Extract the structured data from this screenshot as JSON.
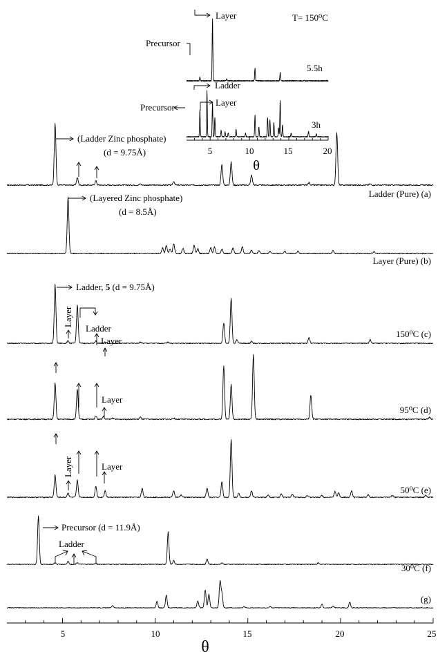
{
  "chart_data": {
    "type": "line",
    "xlabel": "θ",
    "xlim": [
      2,
      25
    ],
    "xticks": [
      5,
      10,
      15,
      20,
      25
    ],
    "yticks": false,
    "series": [
      {
        "name": "Ladder (Pure) (a)",
        "peaks": [
          [
            4.6,
            1.0
          ],
          [
            5.8,
            0.12
          ],
          [
            6.8,
            0.07
          ],
          [
            9.2,
            0.02
          ],
          [
            11.0,
            0.06
          ],
          [
            13.6,
            0.33
          ],
          [
            14.1,
            0.37
          ],
          [
            15.2,
            0.16
          ],
          [
            18.3,
            0.04
          ],
          [
            19.8,
            0.85
          ],
          [
            21.6,
            0.02
          ]
        ]
      },
      {
        "name": "Layer (Pure) (b)",
        "peaks": [
          [
            5.3,
            1.0
          ],
          [
            10.4,
            0.1
          ],
          [
            10.6,
            0.14
          ],
          [
            10.8,
            0.08
          ],
          [
            11.0,
            0.17
          ],
          [
            11.5,
            0.09
          ],
          [
            12.1,
            0.14
          ],
          [
            12.3,
            0.09
          ],
          [
            13.0,
            0.1
          ],
          [
            13.2,
            0.12
          ],
          [
            13.6,
            0.08
          ],
          [
            14.2,
            0.1
          ],
          [
            14.7,
            0.12
          ],
          [
            15.2,
            0.06
          ],
          [
            15.6,
            0.05
          ],
          [
            16.2,
            0.04
          ],
          [
            17.0,
            0.04
          ],
          [
            17.7,
            0.04
          ],
          [
            19.6,
            0.05
          ],
          [
            21.8,
            0.03
          ]
        ]
      },
      {
        "name": "150⁰C (c)",
        "peaks": [
          [
            4.6,
            1.0
          ],
          [
            5.3,
            0.04
          ],
          [
            5.8,
            0.65
          ],
          [
            6.8,
            0.04
          ],
          [
            7.3,
            0.02
          ],
          [
            9.2,
            0.02
          ],
          [
            10.7,
            0.02
          ],
          [
            13.7,
            0.35
          ],
          [
            14.1,
            0.77
          ],
          [
            14.4,
            0.06
          ],
          [
            15.2,
            0.03
          ],
          [
            18.3,
            0.1
          ],
          [
            21.6,
            0.06
          ]
        ]
      },
      {
        "name": "95⁰C (d)",
        "peaks": [
          [
            4.6,
            0.52
          ],
          [
            5.8,
            0.43
          ],
          [
            6.8,
            0.05
          ],
          [
            7.2,
            0.04
          ],
          [
            7.7,
            0.02
          ],
          [
            9.2,
            0.03
          ],
          [
            11.0,
            0.02
          ],
          [
            13.7,
            0.77
          ],
          [
            14.1,
            0.5
          ],
          [
            15.3,
            0.94
          ],
          [
            18.4,
            0.35
          ],
          [
            24.8,
            0.03
          ]
        ]
      },
      {
        "name": "50⁰C (e)",
        "peaks": [
          [
            4.6,
            0.34
          ],
          [
            5.3,
            0.07
          ],
          [
            5.8,
            0.26
          ],
          [
            6.8,
            0.17
          ],
          [
            7.3,
            0.1
          ],
          [
            9.3,
            0.14
          ],
          [
            11.0,
            0.1
          ],
          [
            11.4,
            0.04
          ],
          [
            12.8,
            0.14
          ],
          [
            13.6,
            0.24
          ],
          [
            14.1,
            0.88
          ],
          [
            14.5,
            0.06
          ],
          [
            15.2,
            0.1
          ],
          [
            16.1,
            0.04
          ],
          [
            16.8,
            0.05
          ],
          [
            17.4,
            0.05
          ],
          [
            18.2,
            0.03
          ],
          [
            19.0,
            0.03
          ],
          [
            19.7,
            0.09
          ],
          [
            19.9,
            0.07
          ],
          [
            20.6,
            0.1
          ],
          [
            21.5,
            0.04
          ],
          [
            22.8,
            0.03
          ],
          [
            24.6,
            0.03
          ]
        ]
      },
      {
        "name": "30⁰C (f)",
        "peaks": [
          [
            3.7,
            1.0
          ],
          [
            4.6,
            0.03
          ],
          [
            5.3,
            0.06
          ],
          [
            5.8,
            0.04
          ],
          [
            6.8,
            0.02
          ],
          [
            10.7,
            0.67
          ],
          [
            11.0,
            0.08
          ],
          [
            12.8,
            0.11
          ],
          [
            13.6,
            0.03
          ],
          [
            18.8,
            0.03
          ]
        ]
      },
      {
        "name": "(g)",
        "peaks": [
          [
            7.7,
            0.06
          ],
          [
            10.1,
            0.17
          ],
          [
            10.6,
            0.33
          ],
          [
            12.3,
            0.18
          ],
          [
            12.7,
            0.47
          ],
          [
            12.9,
            0.36
          ],
          [
            13.5,
            0.69
          ],
          [
            13.6,
            0.37
          ],
          [
            14.8,
            0.03
          ],
          [
            16.2,
            0.03
          ],
          [
            19.0,
            0.1
          ],
          [
            19.6,
            0.05
          ],
          [
            20.5,
            0.15
          ]
        ]
      }
    ],
    "annotations": {
      "a_main": "(Ladder Zinc phosphate)",
      "a_d": "(d = 9.75Å)",
      "b_main": "(Layered Zinc phosphate)",
      "b_d": "(d = 8.5Å)",
      "c_ladder_a": "Ladder, ",
      "c_ladder_b": "5",
      "c_ladder_c": " (d = 9.75Å)",
      "c_layer1": "Layer",
      "c_ladder2": "Ladder",
      "c_layer2": "Layer",
      "d_layer": "Layer",
      "e_layer1": "Layer",
      "e_layer2": "Layer",
      "f_precursor": "Precursor (d = 11.9Å)",
      "f_ladder": "Ladder"
    },
    "inset": {
      "xlabel": "θ",
      "xlim": [
        2,
        20
      ],
      "xticks": [
        5,
        10,
        15,
        20
      ],
      "temperature": "T= 150⁰C",
      "series": [
        {
          "name": "5.5h",
          "peaks": [
            [
              3.7,
              0.06
            ],
            [
              5.3,
              1.0
            ],
            [
              7.1,
              0.03
            ],
            [
              10.7,
              0.2
            ],
            [
              13.9,
              0.13
            ]
          ]
        },
        {
          "name": "3h",
          "peaks": [
            [
              3.7,
              0.55
            ],
            [
              4.6,
              0.95
            ],
            [
              5.3,
              0.7
            ],
            [
              5.6,
              0.4
            ],
            [
              6.4,
              0.14
            ],
            [
              6.9,
              0.1
            ],
            [
              7.3,
              0.08
            ],
            [
              8.3,
              0.16
            ],
            [
              9.5,
              0.07
            ],
            [
              10.7,
              0.45
            ],
            [
              11.2,
              0.2
            ],
            [
              12.3,
              0.4
            ],
            [
              12.6,
              0.35
            ],
            [
              13.1,
              0.3
            ],
            [
              13.7,
              0.18
            ],
            [
              13.9,
              0.75
            ],
            [
              14.2,
              0.25
            ],
            [
              15.3,
              0.08
            ],
            [
              17.5,
              0.12
            ],
            [
              18.5,
              0.06
            ]
          ]
        }
      ],
      "labels": {
        "layer_top": "Layer",
        "precursor_top": "Precursor",
        "ladder_low": "Ladder",
        "layer_low": "Layer",
        "precursor_low": "Precursor"
      }
    }
  }
}
